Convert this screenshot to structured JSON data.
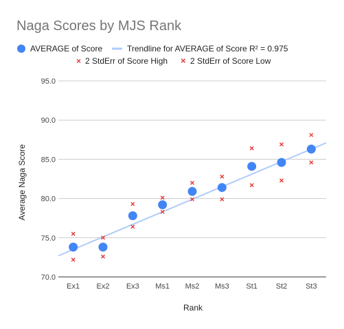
{
  "chart_data": {
    "type": "scatter",
    "title": "Naga Scores by MJS Rank",
    "xlabel": "Rank",
    "ylabel": "Average Naga Score",
    "categories": [
      "Ex1",
      "Ex2",
      "Ex3",
      "Ms1",
      "Ms2",
      "Ms3",
      "St1",
      "St2",
      "St3"
    ],
    "ylim": [
      70,
      95
    ],
    "yticks": [
      "70.0",
      "75.0",
      "80.0",
      "85.0",
      "90.0",
      "95.0"
    ],
    "grid": true,
    "legend_position": "top",
    "series": [
      {
        "name": "AVERAGE of Score",
        "marker": "circle",
        "color": "#4285f4",
        "values": [
          73.8,
          73.8,
          77.8,
          79.2,
          80.9,
          81.4,
          84.1,
          84.6,
          86.3
        ]
      },
      {
        "name": "2 StdErr of Score High",
        "marker": "cross",
        "color": "#e53935",
        "values": [
          75.5,
          75.0,
          79.3,
          80.1,
          82.0,
          82.8,
          86.4,
          86.9,
          88.1
        ]
      },
      {
        "name": "2 StdErr of Score Low",
        "marker": "cross",
        "color": "#e53935",
        "values": [
          72.2,
          72.6,
          76.4,
          78.3,
          79.9,
          79.9,
          81.7,
          82.3,
          84.6
        ]
      }
    ],
    "trendline": {
      "label": "Trendline for AVERAGE of Score R² = 0.975",
      "color": "#aecbfa",
      "slope": 1.6,
      "intercept": 71.9,
      "x_start": 0.5,
      "x_end": 9.5
    }
  }
}
